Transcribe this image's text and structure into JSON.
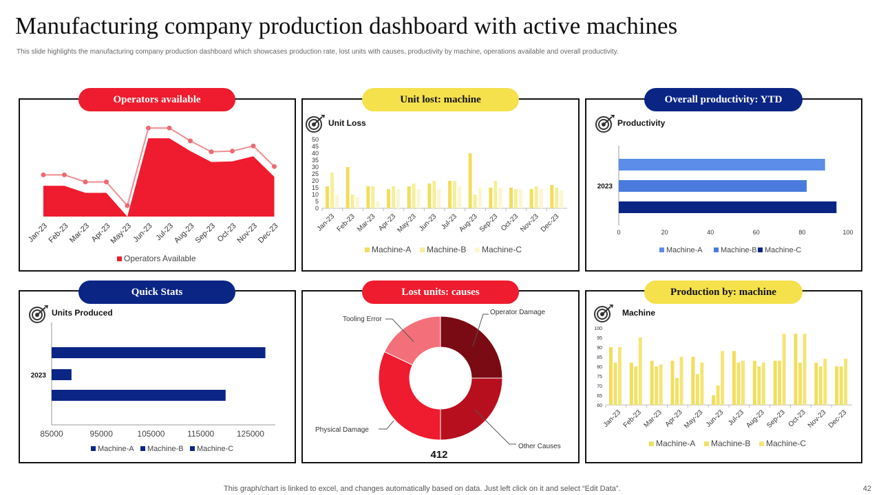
{
  "header": {
    "title": "Manufacturing company production dashboard with active machines",
    "subtitle": "This slide highlights the manufacturing company production dashboard which showcases production rate, lost units with causes, productivity by machine, operations available and overall productivity."
  },
  "panels": {
    "operators": {
      "pill": "Operators available"
    },
    "unit_loss": {
      "pill": "Unit lost: machine"
    },
    "productivity": {
      "pill": "Overall productivity:  YTD"
    },
    "quick_stats": {
      "pill": "Quick Stats"
    },
    "lost_causes": {
      "pill": "Lost units: causes"
    },
    "production": {
      "pill": "Production  by: machine"
    }
  },
  "colors": {
    "red": "#ee1c2e",
    "yellow": "#f4e14c",
    "navy": "#0b2585",
    "yellow_a": "#f2de5c",
    "yellow_b": "#f7ee9a",
    "yellow_c": "#fbf6cf",
    "blue_a": "#5c8de8",
    "blue_b": "#4a7bdc",
    "blue_c": "#0b2585"
  },
  "footer": {
    "note": "This graph/chart is linked to excel,  and changes automatically based on data. Just left click on it and select “Edit Data”.",
    "page": "42"
  },
  "chart_data": [
    {
      "id": "operators",
      "type": "area",
      "title": "",
      "categories": [
        "Jan-23",
        "Feb-23",
        "Mar-23",
        "Apr-23",
        "May-23",
        "Jun-23",
        "Jul-23",
        "Aug-23",
        "Sep-23",
        "Oct-23",
        "Nov-23",
        "Dec-23"
      ],
      "series": [
        {
          "name": "Operators Available",
          "values": [
            48,
            48,
            37,
            37,
            0,
            122,
            122,
            102,
            85,
            86,
            94,
            62
          ]
        },
        {
          "name": "marker line",
          "values": [
            65,
            65,
            54,
            54,
            17,
            138,
            138,
            118,
            101,
            102,
            110,
            78
          ]
        }
      ],
      "legend": [
        "Operators Available"
      ],
      "ylim": [
        0,
        150
      ]
    },
    {
      "id": "unit_loss",
      "type": "bar",
      "title": "Unit Loss",
      "categories": [
        "Jan-23",
        "Feb-23",
        "Mar-23",
        "Apr-23",
        "May-23",
        "Jun-23",
        "Jul-23",
        "Aug-23",
        "Sep-23",
        "Oct-23",
        "Nov-23",
        "Dec-23"
      ],
      "series": [
        {
          "name": "Machine-A",
          "values": [
            16,
            30,
            16,
            14,
            16,
            18,
            20,
            40,
            15,
            15,
            14,
            17
          ]
        },
        {
          "name": "Machine-B",
          "values": [
            26,
            10,
            16,
            16,
            18,
            20,
            20,
            10,
            20,
            14,
            16,
            15
          ]
        },
        {
          "name": "Machine-C",
          "values": [
            10,
            8,
            5,
            14,
            14,
            14,
            16,
            15,
            15,
            14,
            14,
            13
          ]
        }
      ],
      "ylim": [
        0,
        50
      ],
      "yticks": [
        "0",
        "5",
        "10",
        "15",
        "20",
        "25",
        "30",
        "35",
        "40",
        "45",
        "50"
      ],
      "legend": [
        "Machine-A",
        "Machine-B",
        "Machine-C"
      ]
    },
    {
      "id": "productivity",
      "type": "bar",
      "orientation": "horizontal",
      "title": "Productivity",
      "categories": [
        "2023"
      ],
      "series": [
        {
          "name": "Machine-A",
          "values": [
            90
          ]
        },
        {
          "name": "Machine-B",
          "values": [
            82
          ]
        },
        {
          "name": "Machine-C",
          "values": [
            95
          ]
        }
      ],
      "xlim": [
        0,
        100
      ],
      "xticks": [
        "0",
        "20",
        "40",
        "60",
        "80",
        "100"
      ],
      "legend": [
        "Machine-A",
        "Machine-B",
        "Machine-C"
      ]
    },
    {
      "id": "units_produced",
      "type": "bar",
      "orientation": "horizontal",
      "title": "Units Produced",
      "categories": [
        "2023"
      ],
      "series": [
        {
          "name": "Machine-A",
          "values": [
            128000
          ]
        },
        {
          "name": "Machine-B",
          "values": [
            89000
          ]
        },
        {
          "name": "Machine-C",
          "values": [
            120000
          ]
        }
      ],
      "xlim": [
        85000,
        130000
      ],
      "xticks": [
        "85000",
        "95000",
        "105000",
        "115000",
        "125000"
      ],
      "legend": [
        "Machine-A",
        "Machine-B",
        "Machine-C"
      ]
    },
    {
      "id": "lost_causes",
      "type": "pie",
      "title": "",
      "center_label": "412",
      "slices": [
        {
          "name": "Operator Damage",
          "value": 25,
          "color": "#7a0a14"
        },
        {
          "name": "Other Causes",
          "value": 25,
          "color": "#b80f1f"
        },
        {
          "name": "Physical Damage",
          "value": 32,
          "color": "#ee1c2e"
        },
        {
          "name": "Tooling Error",
          "value": 18,
          "color": "#f3707a"
        }
      ]
    },
    {
      "id": "production",
      "type": "bar",
      "title": "Machine",
      "categories": [
        "Jan-23",
        "Feb-23",
        "Mar-23",
        "Apr-23",
        "May-23",
        "Jun-23",
        "Jul-23",
        "Aug-23",
        "Sep-23",
        "Oct-23",
        "Nov-23",
        "Dec-23"
      ],
      "series": [
        {
          "name": "Machine-A",
          "values": [
            90,
            82,
            83,
            83,
            85,
            65,
            88,
            83,
            83,
            97,
            82,
            80
          ]
        },
        {
          "name": "Machine-B",
          "values": [
            82,
            80,
            80,
            74,
            76,
            70,
            82,
            80,
            83,
            82,
            80,
            80
          ]
        },
        {
          "name": "Machine-C",
          "values": [
            90,
            95,
            81,
            85,
            82,
            88,
            83,
            82,
            97,
            97,
            84,
            84
          ]
        }
      ],
      "ylim": [
        60,
        100
      ],
      "yticks": [
        "60",
        "65",
        "70",
        "75",
        "80",
        "85",
        "90",
        "95",
        "100"
      ],
      "legend": [
        "Machine-A",
        "Machine-B",
        "Machine-C"
      ]
    }
  ]
}
